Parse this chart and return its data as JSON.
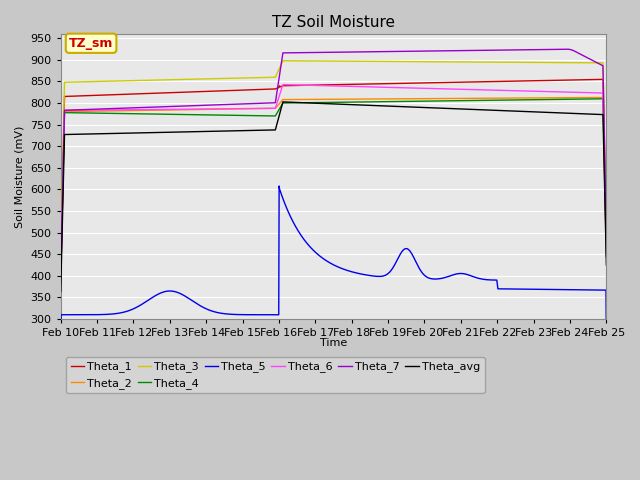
{
  "title": "TZ Soil Moisture",
  "ylabel": "Soil Moisture (mV)",
  "xlabel": "Time",
  "ylim": [
    300,
    960
  ],
  "yticks": [
    300,
    350,
    400,
    450,
    500,
    550,
    600,
    650,
    700,
    750,
    800,
    850,
    900,
    950
  ],
  "x_labels": [
    "Feb 10",
    "Feb 11",
    "Feb 12",
    "Feb 13",
    "Feb 14",
    "Feb 15",
    "Feb 16",
    "Feb 17",
    "Feb 18",
    "Feb 19",
    "Feb 20",
    "Feb 21",
    "Feb 22",
    "Feb 23",
    "Feb 24",
    "Feb 25"
  ],
  "series_colors": {
    "Theta_1": "#cc0000",
    "Theta_2": "#ff8800",
    "Theta_3": "#cccc00",
    "Theta_4": "#008800",
    "Theta_5": "#0000ee",
    "Theta_6": "#ff44ff",
    "Theta_7": "#9900cc",
    "Theta_avg": "#000000"
  },
  "linewidth": 1.0,
  "bg_color": "#e8e8e8",
  "grid_color": "#ffffff",
  "legend_box_color": "#ffffcc",
  "legend_box_edge": "#ccaa00",
  "legend_text_color": "#cc0000",
  "annotation_text": "TZ_sm",
  "title_fontsize": 11,
  "label_fontsize": 8,
  "tick_fontsize": 8
}
